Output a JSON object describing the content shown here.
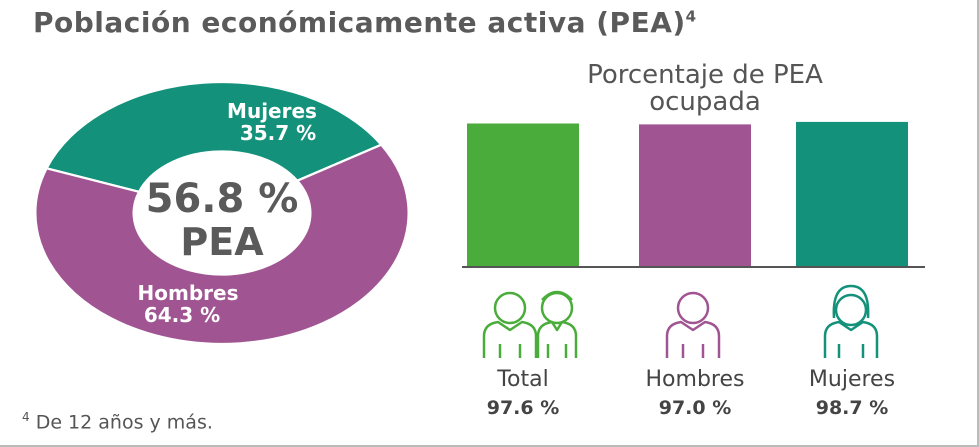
{
  "title": "Población económicamente activa (PEA)",
  "title_note": "4",
  "footnote_mark": "4",
  "footnote": "De 12 años y más.",
  "chart_data": [
    {
      "type": "pie",
      "donut": true,
      "center_label": "56.8 %",
      "center_text": "PEA",
      "categories": [
        "Mujeres",
        "Hombres"
      ],
      "values": [
        35.7,
        64.3
      ],
      "value_labels": [
        "35.7 %",
        "64.3 %"
      ],
      "colors": [
        "#13917a",
        "#a05592"
      ]
    },
    {
      "type": "bar",
      "title": "Porcentaje de PEA ocupada",
      "categories": [
        "Total",
        "Hombres",
        "Mujeres"
      ],
      "values": [
        97.6,
        97.0,
        98.7
      ],
      "value_labels": [
        "97.6 %",
        "97.0 %",
        "98.7 %"
      ],
      "colors": [
        "#4aac3a",
        "#a05592",
        "#13917a"
      ]
    }
  ]
}
